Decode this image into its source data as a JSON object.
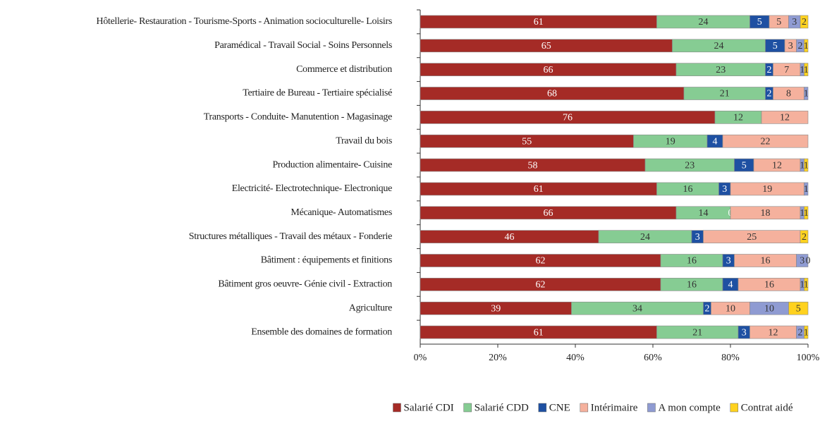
{
  "chart_data": {
    "type": "stacked_barh",
    "categories": [
      "Hôtellerie- Restauration - Tourisme-Sports - Animation socioculturelle- Loisirs",
      "Paramédical - Travail Social - Soins Personnels",
      "Commerce et distribution",
      "Tertiaire de Bureau - Tertiaire spécialisé",
      "Transports - Conduite- Manutention - Magasinage",
      "Travail du bois",
      "Production alimentaire- Cuisine",
      "Electricité- Electrotechnique- Electronique",
      "Mécanique- Automatismes",
      "Structures métalliques - Travail des métaux - Fonderie",
      "Bâtiment : équipements et finitions",
      "Bâtiment gros oeuvre- Génie civil - Extraction",
      "Agriculture",
      "Ensemble des domaines de formation"
    ],
    "series": [
      {
        "name": "Salarié CDI",
        "color": "#a52b26",
        "label_color": "#ffffff",
        "values": [
          61,
          65,
          66,
          68,
          76,
          55,
          58,
          61,
          66,
          46,
          62,
          62,
          39,
          61
        ]
      },
      {
        "name": "Salarié CDD",
        "color": "#86cc93",
        "label_color": "#333333",
        "values": [
          24,
          24,
          23,
          21,
          12,
          19,
          23,
          16,
          14,
          24,
          16,
          16,
          34,
          21
        ]
      },
      {
        "name": "CNE",
        "color": "#1e50a2",
        "label_color": "#ffffff",
        "values": [
          5,
          5,
          2,
          2,
          null,
          4,
          5,
          3,
          0,
          3,
          3,
          4,
          2,
          3
        ]
      },
      {
        "name": "Intérimaire",
        "color": "#f5b19d",
        "label_color": "#333333",
        "values": [
          5,
          3,
          7,
          8,
          12,
          22,
          12,
          19,
          18,
          25,
          16,
          16,
          10,
          12
        ]
      },
      {
        "name": "A mon compte",
        "color": "#8f9bd2",
        "label_color": "#333333",
        "values": [
          3,
          2,
          1,
          1,
          null,
          null,
          1,
          1,
          1,
          null,
          3,
          1,
          10,
          2
        ]
      },
      {
        "name": "Contrat aidé",
        "color": "#ffd21f",
        "label_color": "#333333",
        "values": [
          2,
          1,
          1,
          null,
          null,
          null,
          1,
          null,
          1,
          2,
          0,
          1,
          5,
          1
        ]
      }
    ],
    "xlim": [
      0,
      100
    ],
    "xticks": [
      {
        "value": 0,
        "label": "0%"
      },
      {
        "value": 20,
        "label": "20%"
      },
      {
        "value": 40,
        "label": "40%"
      },
      {
        "value": 60,
        "label": "60%"
      },
      {
        "value": 80,
        "label": "80%"
      },
      {
        "value": 100,
        "label": "100%"
      }
    ],
    "legend": "bottom"
  }
}
